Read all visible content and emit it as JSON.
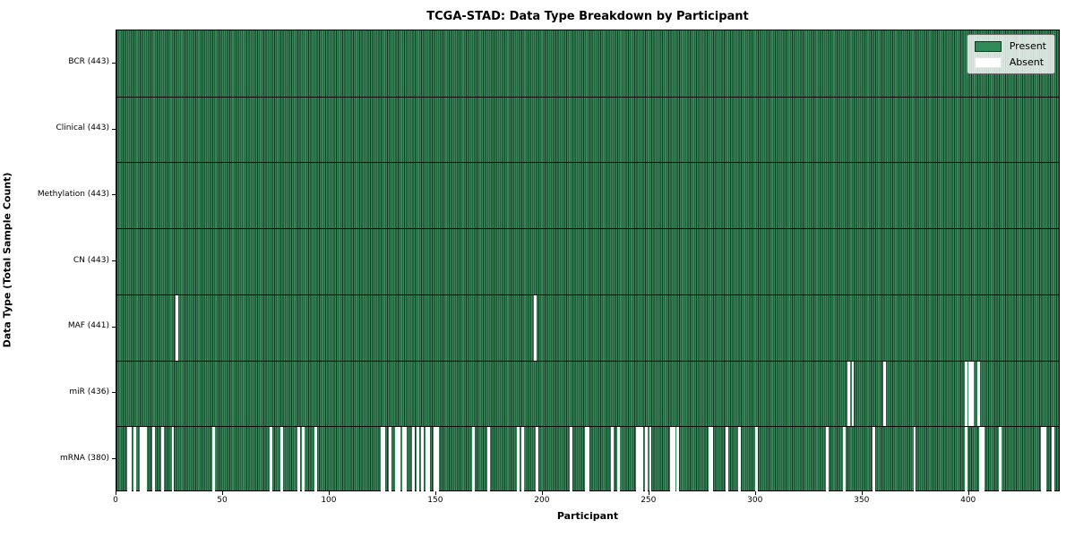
{
  "chart_data": {
    "type": "heatmap",
    "title": "TCGA-STAD: Data Type Breakdown by Participant",
    "xlabel": "Participant",
    "ylabel": "Data Type (Total Sample Count)",
    "n_participants": 443,
    "x_ticks": [
      0,
      50,
      100,
      150,
      200,
      250,
      300,
      350,
      400
    ],
    "legend": [
      {
        "label": "Present",
        "color": "#2e8b57"
      },
      {
        "label": "Absent",
        "color": "#ffffff"
      }
    ],
    "colors": {
      "present_fill": "#378558",
      "cell_edge": "#123a22",
      "absent": "#ffffff",
      "row_divider": "#000000",
      "axis": "#000000"
    },
    "rows": [
      {
        "label": "BCR (443)",
        "total": 443,
        "absent": []
      },
      {
        "label": "Clinical (443)",
        "total": 443,
        "absent": []
      },
      {
        "label": "Methylation (443)",
        "total": 443,
        "absent": []
      },
      {
        "label": "CN (443)",
        "total": 443,
        "absent": []
      },
      {
        "label": "MAF (441)",
        "total": 441,
        "absent": [
          28,
          196
        ]
      },
      {
        "label": "miR (436)",
        "total": 436,
        "absent": [
          343,
          345,
          360,
          398,
          400,
          401,
          404
        ]
      },
      {
        "label": "mRNA (380)",
        "total": 380,
        "absent": [
          5,
          6,
          8,
          11,
          12,
          13,
          17,
          21,
          26,
          45,
          72,
          77,
          85,
          87,
          93,
          124,
          125,
          128,
          131,
          132,
          134,
          135,
          139,
          141,
          143,
          145,
          146,
          149,
          150,
          167,
          174,
          188,
          190,
          197,
          213,
          220,
          221,
          232,
          235,
          244,
          245,
          246,
          248,
          250,
          260,
          261,
          263,
          278,
          279,
          286,
          292,
          300,
          333,
          341,
          355,
          374,
          398,
          405,
          406,
          414,
          434,
          435,
          439
        ]
      }
    ]
  }
}
